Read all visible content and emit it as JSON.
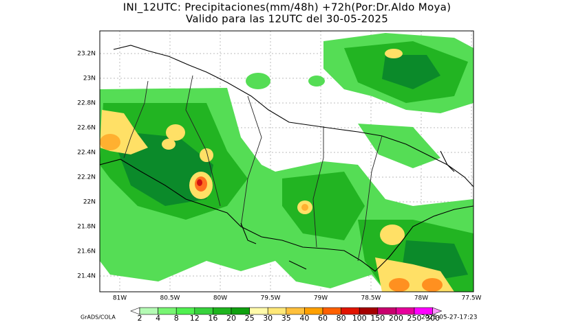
{
  "header": {
    "title": "INI_12UTC: Precipitaciones(mm/48h) +72h(Por:Dr.Aldo Moya)",
    "subtitle": "Valido para las 12UTC del 30-05-2025"
  },
  "map": {
    "lon_labels": [
      "81W",
      "80.5W",
      "80W",
      "79.5W",
      "79W",
      "78.5W",
      "78W",
      "77.5W"
    ],
    "lat_labels": [
      "23.2N",
      "23N",
      "22.8N",
      "22.6N",
      "22.4N",
      "22.2N",
      "22N",
      "21.8N",
      "21.6N",
      "21.4N"
    ]
  },
  "colorbar": {
    "levels": [
      2,
      4,
      8,
      12,
      16,
      20,
      25,
      30,
      35,
      40,
      60,
      80,
      100,
      150,
      200,
      250,
      300
    ]
  },
  "footer": {
    "credit": "GrADS/COLA",
    "timestamp": "2025-05-27-17:23"
  }
}
